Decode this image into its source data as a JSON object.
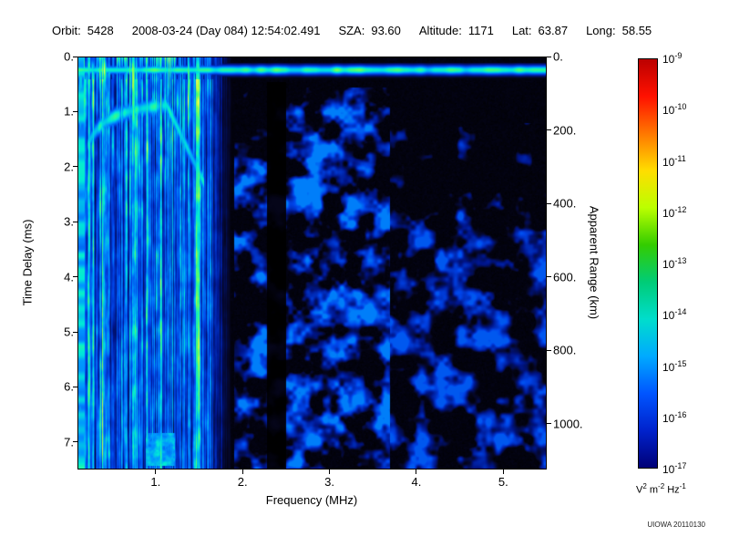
{
  "header": {
    "fields": [
      {
        "label": "Orbit:",
        "value": "5428"
      },
      {
        "label": "",
        "value": "2008-03-24 (Day 084) 12:54:02.491"
      },
      {
        "label": "SZA:",
        "value": "93.60"
      },
      {
        "label": "Altitude:",
        "value": "1171"
      },
      {
        "label": "Lat:",
        "value": "63.87"
      },
      {
        "label": "Long:",
        "value": "58.55"
      }
    ]
  },
  "chart_data": {
    "type": "heatmap",
    "title": "",
    "xlabel": "Frequency (MHz)",
    "ylabel_left": "Time Delay (ms)",
    "ylabel_right": "Apparent Range (km)",
    "xlim": [
      0.1,
      5.5
    ],
    "ylim": [
      0,
      7.5
    ],
    "grid": false,
    "x_ticks": [
      {
        "value": 1,
        "label": "1."
      },
      {
        "value": 2,
        "label": "2."
      },
      {
        "value": 3,
        "label": "3."
      },
      {
        "value": 4,
        "label": "4."
      },
      {
        "value": 5,
        "label": "5."
      }
    ],
    "y_ticks_left": [
      {
        "value": 0,
        "label": "0."
      },
      {
        "value": 1,
        "label": "1."
      },
      {
        "value": 2,
        "label": "2."
      },
      {
        "value": 3,
        "label": "3."
      },
      {
        "value": 4,
        "label": "4."
      },
      {
        "value": 5,
        "label": "5."
      },
      {
        "value": 6,
        "label": "6."
      },
      {
        "value": 7,
        "label": "7."
      }
    ],
    "y_ticks_right": [
      {
        "value": 0,
        "label": "0."
      },
      {
        "value": 200,
        "label": "200."
      },
      {
        "value": 400,
        "label": "400."
      },
      {
        "value": 600,
        "label": "600."
      },
      {
        "value": 800,
        "label": "800."
      },
      {
        "value": 1000,
        "label": "1000."
      }
    ],
    "range_km_per_ms": 150,
    "colorbar": {
      "scale": "log10",
      "max": "1e-9",
      "min": "1e-17",
      "tick_exponents": [
        -9,
        -10,
        -11,
        -12,
        -13,
        -14,
        -15,
        -16,
        -17
      ],
      "unit_parts": [
        {
          "base": "V",
          "exp": "2"
        },
        {
          "base": "m",
          "exp": "-2"
        },
        {
          "base": "Hz",
          "exp": "-1"
        }
      ],
      "gradient_colors": [
        "#bb0000",
        "#ff1100",
        "#ff7700",
        "#ffdd00",
        "#bbff00",
        "#33cc00",
        "#00cc77",
        "#00ddcc",
        "#00aaff",
        "#0055ff",
        "#0022cc",
        "#000077"
      ]
    },
    "features": [
      {
        "name": "surface-reflection-band",
        "f_mhz": [
          0.1,
          5.5
        ],
        "t_ms": [
          0.1,
          0.42
        ],
        "level": "bright cyan-green horizontal band"
      },
      {
        "name": "low-frequency-ionospheric-clutter",
        "f_mhz": [
          0.1,
          1.9
        ],
        "t_ms": [
          0.0,
          7.5
        ],
        "level": "vertical blue-green striations, brightest near top"
      },
      {
        "name": "ionospheric-echo-trace",
        "f_mhz": [
          0.2,
          1.55
        ],
        "t_ms": [
          0.8,
          2.1
        ],
        "level": "cyan arc dipping near 1 MHz, rising near 1.5 MHz"
      },
      {
        "name": "attenuation-gap",
        "f_mhz": [
          2.28,
          2.5
        ],
        "t_ms": [
          0.45,
          7.5
        ],
        "level": "dark vertical band"
      },
      {
        "name": "diffuse-noise-mid",
        "f_mhz": [
          1.9,
          3.7
        ],
        "t_ms": [
          0.55,
          7.5
        ],
        "level": "scattered blue blobs"
      },
      {
        "name": "diffuse-noise-high",
        "f_mhz": [
          3.7,
          5.5
        ],
        "t_ms": [
          1.2,
          7.5
        ],
        "level": "sparse faint blue speckle, denser toward bottom"
      },
      {
        "name": "bottom-left-patch",
        "f_mhz": [
          0.88,
          1.22
        ],
        "t_ms": [
          6.85,
          7.45
        ],
        "level": "bright cyan patch"
      }
    ]
  },
  "footer": {
    "credit": "UIOWA 20110130"
  }
}
